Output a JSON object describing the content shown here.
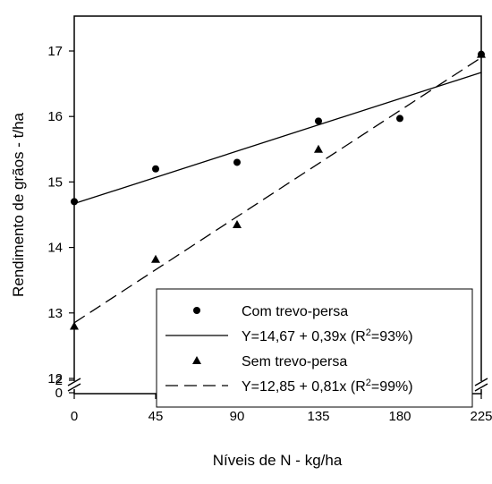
{
  "chart_data": {
    "type": "scatter",
    "xlabel": "Níveis de N - kg/ha",
    "ylabel": "Rendimento de grãos - t/ha",
    "xlim": [
      0,
      225
    ],
    "ylim": [
      12,
      17.5
    ],
    "axis_break": true,
    "x_ticks": [
      "0",
      "45",
      "90",
      "135",
      "180",
      "225"
    ],
    "y_ticks_upper": [
      "12",
      "13",
      "14",
      "15",
      "16",
      "17"
    ],
    "y_ticks_lower": [
      "2",
      "0"
    ],
    "grid": false,
    "legend_position": "bottom-right",
    "series": [
      {
        "name": "Com trevo-persa",
        "marker": "circle",
        "points": [
          [
            0,
            14.7
          ],
          [
            45,
            15.2
          ],
          [
            90,
            15.3
          ],
          [
            135,
            15.93
          ],
          [
            180,
            15.97
          ],
          [
            225,
            16.95
          ]
        ],
        "fit": {
          "label_prefix": "Y=14,67 + 0,39x  (R",
          "sup": "2",
          "label_suffix": "=93%)",
          "intercept": 14.67,
          "slope": 0.0089,
          "dash": "solid"
        }
      },
      {
        "name": "Sem trevo-persa",
        "marker": "triangle",
        "points": [
          [
            0,
            12.8
          ],
          [
            45,
            13.82
          ],
          [
            90,
            14.35
          ],
          [
            135,
            15.5
          ],
          [
            225,
            16.95
          ]
        ],
        "fit": {
          "label_prefix": "Y=12,85 + 0,81x  (R",
          "sup": "2",
          "label_suffix": "=99%)",
          "intercept": 12.85,
          "slope": 0.018,
          "dash": "dashed"
        }
      }
    ],
    "colors": {
      "ink": "#000000",
      "background": "#ffffff"
    }
  }
}
